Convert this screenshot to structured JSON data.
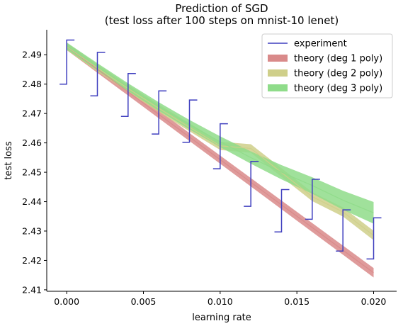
{
  "chart_data": {
    "type": "line",
    "title": "Prediction of SGD",
    "subtitle": "(test loss after 100 steps on mnist-10 lenet)",
    "xlabel": "learning rate",
    "ylabel": "test loss",
    "xlim": [
      -0.0013,
      0.0215
    ],
    "ylim": [
      2.4095,
      2.4985
    ],
    "x_ticks": [
      0.0,
      0.005,
      0.01,
      0.015,
      0.02
    ],
    "x_tick_labels": [
      "0.000",
      "0.005",
      "0.010",
      "0.015",
      "0.020"
    ],
    "y_ticks": [
      2.41,
      2.42,
      2.43,
      2.44,
      2.45,
      2.46,
      2.47,
      2.48,
      2.49
    ],
    "y_tick_labels": [
      "2.41",
      "2.42",
      "2.43",
      "2.44",
      "2.45",
      "2.46",
      "2.47",
      "2.48",
      "2.49"
    ],
    "grid": false,
    "legend_position": "top-right",
    "experiment": {
      "name": "experiment",
      "color": "#3f3fbf",
      "x": [
        0.0,
        0.002,
        0.004,
        0.006,
        0.008,
        0.01,
        0.012,
        0.014,
        0.016,
        0.018,
        0.02
      ],
      "low": [
        2.48,
        2.476,
        2.469,
        2.463,
        2.4602,
        2.4512,
        2.4384,
        2.4297,
        2.434,
        2.4232,
        2.4205
      ],
      "high": [
        2.495,
        2.4908,
        2.4836,
        2.4777,
        2.4746,
        2.4665,
        2.4537,
        2.4441,
        2.4476,
        2.4372,
        2.4345
      ]
    },
    "series": [
      {
        "name": "theory (deg 1 poly)",
        "color": "#d98a8a",
        "x": [
          0.0,
          0.002,
          0.004,
          0.006,
          0.008,
          0.01,
          0.012,
          0.014,
          0.016,
          0.018,
          0.02
        ],
        "y": [
          2.4928,
          2.4851,
          2.4774,
          2.4697,
          2.462,
          2.4543,
          2.4466,
          2.4389,
          2.4312,
          2.4235,
          2.4158
        ],
        "band": 0.0012
      },
      {
        "name": "theory (deg 2 poly)",
        "color": "#cfcf8a",
        "x": [
          0.0,
          0.002,
          0.004,
          0.006,
          0.008,
          0.01,
          0.012,
          0.014,
          0.016,
          0.018,
          0.02
        ],
        "y": [
          2.4928,
          2.4855,
          2.4785,
          2.4718,
          2.4653,
          2.459,
          2.453,
          2.4572,
          2.4417,
          2.4365,
          2.4285
        ],
        "band": 0.0012
      },
      {
        "name": "theory (deg 3 poly)",
        "color": "#8fdc8a",
        "x": [
          0.0,
          0.002,
          0.004,
          0.006,
          0.008,
          0.01,
          0.012,
          0.014,
          0.016,
          0.018,
          0.02
        ],
        "y": [
          2.493,
          2.4859,
          2.479,
          2.4724,
          2.4662,
          2.4604,
          2.455,
          2.45,
          2.4455,
          2.4405,
          2.4362
        ],
        "band": 0.0012,
        "band_growth": 0.0025
      }
    ]
  }
}
